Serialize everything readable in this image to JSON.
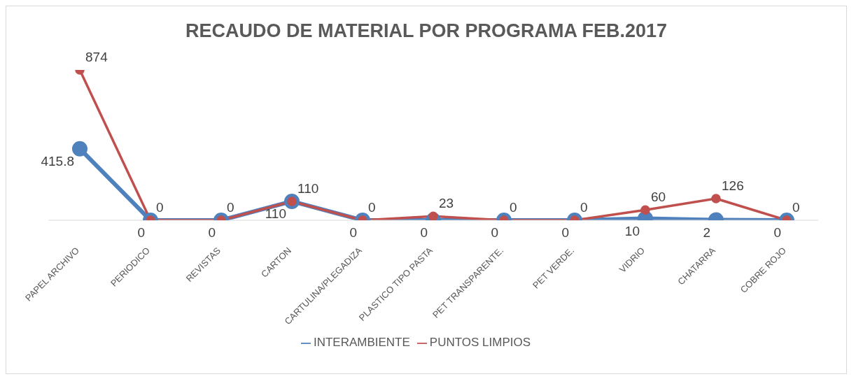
{
  "chart_data": {
    "type": "line",
    "title": "RECAUDO DE MATERIAL POR PROGRAMA FEB.2017",
    "categories": [
      "PAPEL ARCHIVO",
      "PERIODICO",
      "REVISTAS",
      "CARTON",
      "CARTULINA/PLEGADIZA",
      "PLASTICO TIPO PASTA",
      "PET TRANSPARENTE.",
      "PET VERDE.",
      "VIDRIO",
      "CHATARRA",
      "COBRE ROJO"
    ],
    "series": [
      {
        "name": "INTERAMBIENTE",
        "color": "#4f81bd",
        "values": [
          415.8,
          0,
          0,
          110,
          0,
          0,
          0,
          0,
          10,
          2,
          0
        ]
      },
      {
        "name": "PUNTOS LIMPIOS",
        "color": "#c0504d",
        "values": [
          874,
          0,
          0,
          110,
          0,
          23,
          0,
          0,
          60,
          126,
          0
        ]
      }
    ],
    "tick_labels": "x",
    "legend": "bottom",
    "marker": "circle",
    "line_style": "solid",
    "data_labels": true
  }
}
